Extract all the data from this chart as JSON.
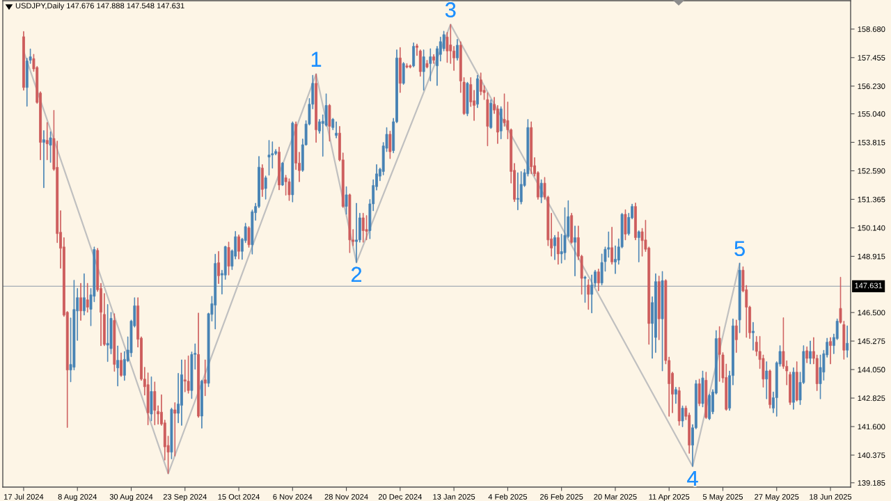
{
  "chart_data": {
    "type": "candlestick",
    "title": "USDJPY,Daily 147.676 147.888 147.548 147.631",
    "categories": [
      "17 Jul 2024",
      null,
      null,
      null,
      null,
      null,
      null,
      null,
      null,
      null,
      null,
      null,
      null,
      null,
      null,
      null,
      "8 Aug 2024",
      null,
      null,
      null,
      null,
      null,
      null,
      null,
      null,
      null,
      null,
      null,
      null,
      null,
      null,
      null,
      "30 Aug 2024",
      null,
      null,
      null,
      null,
      null,
      null,
      null,
      null,
      null,
      null,
      null,
      null,
      null,
      null,
      null,
      "23 Sep 2024",
      null,
      null,
      null,
      null,
      null,
      null,
      null,
      null,
      null,
      null,
      null,
      null,
      null,
      null,
      null,
      "15 Oct 2024",
      null,
      null,
      null,
      null,
      null,
      null,
      null,
      null,
      null,
      null,
      null,
      null,
      null,
      null,
      null,
      "6 Nov 2024",
      null,
      null,
      null,
      null,
      null,
      null,
      null,
      null,
      null,
      null,
      null,
      null,
      null,
      null,
      null,
      "28 Nov 2024",
      null,
      null,
      null,
      null,
      null,
      null,
      null,
      null,
      null,
      null,
      null,
      null,
      null,
      null,
      null,
      "20 Dec 2024",
      null,
      null,
      null,
      null,
      null,
      null,
      null,
      null,
      null,
      null,
      null,
      null,
      null,
      null,
      null,
      "13 Jan 2025",
      null,
      null,
      null,
      null,
      null,
      null,
      null,
      null,
      null,
      null,
      null,
      null,
      null,
      null,
      null,
      "4 Feb 2025",
      null,
      null,
      null,
      null,
      null,
      null,
      null,
      null,
      null,
      null,
      null,
      null,
      null,
      null,
      null,
      "26 Feb 2025",
      null,
      null,
      null,
      null,
      null,
      null,
      null,
      null,
      null,
      null,
      null,
      null,
      null,
      null,
      null,
      "20 Mar 2025",
      null,
      null,
      null,
      null,
      null,
      null,
      null,
      null,
      null,
      null,
      null,
      null,
      null,
      null,
      null,
      "11 Apr 2025",
      null,
      null,
      null,
      null,
      null,
      null,
      null,
      null,
      null,
      null,
      null,
      null,
      null,
      null,
      null,
      "5 May 2025",
      null,
      null,
      null,
      null,
      null,
      null,
      null,
      null,
      null,
      null,
      null,
      null,
      null,
      null,
      null,
      "27 May 2025",
      null,
      null,
      null,
      null,
      null,
      null,
      null,
      null,
      null,
      null,
      null,
      null,
      null,
      null,
      null,
      "18 Jun 2025",
      null,
      null,
      null,
      null,
      null
    ],
    "ohlc": [
      [
        158.35,
        158.58,
        156.05,
        156.17
      ],
      [
        156.17,
        157.43,
        155.36,
        157.31
      ],
      [
        157.34,
        157.83,
        157.2,
        157.49
      ],
      [
        157.41,
        157.6,
        156.86,
        156.97
      ],
      [
        157.03,
        157.08,
        155.48,
        155.53
      ],
      [
        155.93,
        155.99,
        153.06,
        153.81
      ],
      [
        153.81,
        154.32,
        151.86,
        153.93
      ],
      [
        153.9,
        154.67,
        153.06,
        153.75
      ],
      [
        153.69,
        154.27,
        152.95,
        154.01
      ],
      [
        153.98,
        155.19,
        152.6,
        152.66
      ],
      [
        152.74,
        153.87,
        149.5,
        149.89
      ],
      [
        149.95,
        150.88,
        148.4,
        149.26
      ],
      [
        149.32,
        149.72,
        146.33,
        146.39
      ],
      [
        146.51,
        146.55,
        141.56,
        144.03
      ],
      [
        144.03,
        146.27,
        143.52,
        144.27
      ],
      [
        144.15,
        147.89,
        144.03,
        146.63
      ],
      [
        146.57,
        147.54,
        145.3,
        147.14
      ],
      [
        147.14,
        147.76,
        146.16,
        146.57
      ],
      [
        146.57,
        148.17,
        146.39,
        147.14
      ],
      [
        147.05,
        147.76,
        146.51,
        146.73
      ],
      [
        146.64,
        147.54,
        145.93,
        147.26
      ],
      [
        147.2,
        149.32,
        146.96,
        149.21
      ],
      [
        149.17,
        149.26,
        147.4,
        147.48
      ],
      [
        147.54,
        147.76,
        145.07,
        146.51
      ],
      [
        146.42,
        147.32,
        145.07,
        145.13
      ],
      [
        145.1,
        146.85,
        144.39,
        145.18
      ],
      [
        144.95,
        146.51,
        144.72,
        146.25
      ],
      [
        146.16,
        146.45,
        143.97,
        144.27
      ],
      [
        144.12,
        145.07,
        143.34,
        144.45
      ],
      [
        144.45,
        144.77,
        143.75,
        143.8
      ],
      [
        143.8,
        144.83,
        143.58,
        144.49
      ],
      [
        144.43,
        145.46,
        144.38,
        144.89
      ],
      [
        144.77,
        146.18,
        144.6,
        146.13
      ],
      [
        145.93,
        147.14,
        145.87,
        146.79
      ],
      [
        146.79,
        147.14,
        145.01,
        145.35
      ],
      [
        145.4,
        145.46,
        143.58,
        143.64
      ],
      [
        143.64,
        144.15,
        142.95,
        143.31
      ],
      [
        143.4,
        143.91,
        141.67,
        142.19
      ],
      [
        142.14,
        143.74,
        141.84,
        143.11
      ],
      [
        143.11,
        143.52,
        141.67,
        142.3
      ],
      [
        142.25,
        142.5,
        141.7,
        142.14
      ],
      [
        142.22,
        142.97,
        141.65,
        141.71
      ],
      [
        141.76,
        141.88,
        140.16,
        140.73
      ],
      [
        140.79,
        141.19,
        139.58,
        140.5
      ],
      [
        140.5,
        142.4,
        140.21,
        142.34
      ],
      [
        142.32,
        142.63,
        140.33,
        142.17
      ],
      [
        142.17,
        143.89,
        141.76,
        142.57
      ],
      [
        142.51,
        144.47,
        141.65,
        143.83
      ],
      [
        143.61,
        144.47,
        143.09,
        143.55
      ],
      [
        143.55,
        144.64,
        143.03,
        143.15
      ],
      [
        143.15,
        144.81,
        142.8,
        144.7
      ],
      [
        144.7,
        145.16,
        144.06,
        144.75
      ],
      [
        144.7,
        146.48,
        141.99,
        142.05
      ],
      [
        142.05,
        143.6,
        141.53,
        143.55
      ],
      [
        143.61,
        144.47,
        142.92,
        143.46
      ],
      [
        143.46,
        146.48,
        143.31,
        146.45
      ],
      [
        146.42,
        147.2,
        146.13,
        146.88
      ],
      [
        146.82,
        149.01,
        145.79,
        148.61
      ],
      [
        148.64,
        149.13,
        147.74,
        148.08
      ],
      [
        148.11,
        148.32,
        147.29,
        148.18
      ],
      [
        148.11,
        149.36,
        147.92,
        149.33
      ],
      [
        149.3,
        149.53,
        148.11,
        148.49
      ],
      [
        148.49,
        149.2,
        148.34,
        149.15
      ],
      [
        148.92,
        149.99,
        148.8,
        149.76
      ],
      [
        149.76,
        149.84,
        148.8,
        149.13
      ],
      [
        149.13,
        149.7,
        148.78,
        149.65
      ],
      [
        149.59,
        150.34,
        149.5,
        150.19
      ],
      [
        150.14,
        150.2,
        149.3,
        149.41
      ],
      [
        149.41,
        150.91,
        149.01,
        150.83
      ],
      [
        150.79,
        151.2,
        150.46,
        151.06
      ],
      [
        151.06,
        153.21,
        151.0,
        152.75
      ],
      [
        152.71,
        152.86,
        151.48,
        151.79
      ],
      [
        151.83,
        152.37,
        151.37,
        152.29
      ],
      [
        153.18,
        153.9,
        152.4,
        153.27
      ],
      [
        153.27,
        153.84,
        152.7,
        153.33
      ],
      [
        153.33,
        153.51,
        153.27,
        153.42
      ],
      [
        153.4,
        153.61,
        151.77,
        151.98
      ],
      [
        151.98,
        152.95,
        151.95,
        152.92
      ],
      [
        152.29,
        152.4,
        151.54,
        152.12
      ],
      [
        152.12,
        152.25,
        151.31,
        151.56
      ],
      [
        151.56,
        154.7,
        151.25,
        154.64
      ],
      [
        154.59,
        154.7,
        152.64,
        152.92
      ],
      [
        152.92,
        153.39,
        152.12,
        152.6
      ],
      [
        152.61,
        153.96,
        152.56,
        153.71
      ],
      [
        153.71,
        154.75,
        153.68,
        154.6
      ],
      [
        154.6,
        155.7,
        154.55,
        155.45
      ],
      [
        155.45,
        156.7,
        155.25,
        156.35
      ],
      [
        156.35,
        156.75,
        153.81,
        154.35
      ],
      [
        154.3,
        154.8,
        154.2,
        154.7
      ],
      [
        154.62,
        155.0,
        153.21,
        154.72
      ],
      [
        154.55,
        155.9,
        154.5,
        155.4
      ],
      [
        155.4,
        155.45,
        153.86,
        154.5
      ],
      [
        154.45,
        154.85,
        154.35,
        154.8
      ],
      [
        154.11,
        154.7,
        154.0,
        154.21
      ],
      [
        154.21,
        154.5,
        153.01,
        153.06
      ],
      [
        153.06,
        153.36,
        151.01,
        151.06
      ],
      [
        151.06,
        151.91,
        150.72,
        151.56
      ],
      [
        151.56,
        151.6,
        149.07,
        149.62
      ],
      [
        149.62,
        150.07,
        149.37,
        149.55
      ],
      [
        149.55,
        151.2,
        148.65,
        149.62
      ],
      [
        149.62,
        150.77,
        149.52,
        150.57
      ],
      [
        150.57,
        150.77,
        149.52,
        150.02
      ],
      [
        150.07,
        150.67,
        149.62,
        149.99
      ],
      [
        150.02,
        151.36,
        149.67,
        151.17
      ],
      [
        151.17,
        152.21,
        150.87,
        151.96
      ],
      [
        151.91,
        152.86,
        151.76,
        152.46
      ],
      [
        152.36,
        152.71,
        152.16,
        152.66
      ],
      [
        152.56,
        153.81,
        152.41,
        153.66
      ],
      [
        153.56,
        154.45,
        153.41,
        154.16
      ],
      [
        154.16,
        154.3,
        153.11,
        153.41
      ],
      [
        153.46,
        154.85,
        153.36,
        154.7
      ],
      [
        154.7,
        157.79,
        154.65,
        157.44
      ],
      [
        157.44,
        157.89,
        155.95,
        156.35
      ],
      [
        156.35,
        157.25,
        156.3,
        157.2
      ],
      [
        157.1,
        157.2,
        157.0,
        157.05
      ],
      [
        157.1,
        157.15,
        157.0,
        157.05
      ],
      [
        157.1,
        158.09,
        157.05,
        157.94
      ],
      [
        157.96,
        158.04,
        157.54,
        157.89
      ],
      [
        157.74,
        157.79,
        156.65,
        156.85
      ],
      [
        156.85,
        157.79,
        156.05,
        157.49
      ],
      [
        157.2,
        157.34,
        157.0,
        157.05
      ],
      [
        157.2,
        157.84,
        156.45,
        157.49
      ],
      [
        157.49,
        157.59,
        157.2,
        157.34
      ],
      [
        157.1,
        157.94,
        156.25,
        157.84
      ],
      [
        157.59,
        158.34,
        157.3,
        158.14
      ],
      [
        157.84,
        158.59,
        157.74,
        158.44
      ],
      [
        158.34,
        158.54,
        157.24,
        157.74
      ],
      [
        158.0,
        158.88,
        157.2,
        157.74
      ],
      [
        157.74,
        157.94,
        156.9,
        157.44
      ],
      [
        157.44,
        158.24,
        157.34,
        157.99
      ],
      [
        157.99,
        158.14,
        155.95,
        156.45
      ],
      [
        156.4,
        156.6,
        155.0,
        155.05
      ],
      [
        155.05,
        156.4,
        154.95,
        156.35
      ],
      [
        156.3,
        156.6,
        155.35,
        155.55
      ],
      [
        155.6,
        156.05,
        154.75,
        155.4
      ],
      [
        155.45,
        156.7,
        155.3,
        156.55
      ],
      [
        156.5,
        156.8,
        155.85,
        156.0
      ],
      [
        156.05,
        156.25,
        155.65,
        155.95
      ],
      [
        155.65,
        155.95,
        153.66,
        154.5
      ],
      [
        154.45,
        155.65,
        154.4,
        155.5
      ],
      [
        155.45,
        155.75,
        155.05,
        155.2
      ],
      [
        155.25,
        155.4,
        153.76,
        154.25
      ],
      [
        154.3,
        155.35,
        153.96,
        155.25
      ],
      [
        154.8,
        155.9,
        154.5,
        154.65
      ],
      [
        154.75,
        155.55,
        153.96,
        154.35
      ],
      [
        154.35,
        154.4,
        152.06,
        152.56
      ],
      [
        152.61,
        152.91,
        151.26,
        151.36
      ],
      [
        151.36,
        152.51,
        150.91,
        151.41
      ],
      [
        151.26,
        152.56,
        151.16,
        152.01
      ],
      [
        151.96,
        152.66,
        151.91,
        152.51
      ],
      [
        152.46,
        154.8,
        152.36,
        154.45
      ],
      [
        154.45,
        154.7,
        152.46,
        152.76
      ],
      [
        152.81,
        153.16,
        152.36,
        152.46
      ],
      [
        152.51,
        152.56,
        151.36,
        151.46
      ],
      [
        151.46,
        152.21,
        151.21,
        152.06
      ],
      [
        152.06,
        152.31,
        151.36,
        151.46
      ],
      [
        151.46,
        151.51,
        149.37,
        149.62
      ],
      [
        149.67,
        150.77,
        148.92,
        149.27
      ],
      [
        149.37,
        149.82,
        148.77,
        149.72
      ],
      [
        149.72,
        149.97,
        148.57,
        149.02
      ],
      [
        149.02,
        149.87,
        148.62,
        149.12
      ],
      [
        149.07,
        151.01,
        148.77,
        149.82
      ],
      [
        149.77,
        151.31,
        149.72,
        150.62
      ],
      [
        150.67,
        150.77,
        149.47,
        149.52
      ],
      [
        149.52,
        150.22,
        148.07,
        149.72
      ],
      [
        149.72,
        150.22,
        148.77,
        148.92
      ],
      [
        148.92,
        148.97,
        147.28,
        147.97
      ],
      [
        147.97,
        148.07,
        146.93,
        148.02
      ],
      [
        147.68,
        147.92,
        146.63,
        147.28
      ],
      [
        147.28,
        148.12,
        146.48,
        147.68
      ],
      [
        147.77,
        148.32,
        147.6,
        148.25
      ],
      [
        148.25,
        148.37,
        147.43,
        147.77
      ],
      [
        147.77,
        149.02,
        147.68,
        148.65
      ],
      [
        148.69,
        149.32,
        148.27,
        149.22
      ],
      [
        149.22,
        149.97,
        148.87,
        149.29
      ],
      [
        149.29,
        150.17,
        148.57,
        148.67
      ],
      [
        148.67,
        149.37,
        148.17,
        148.79
      ],
      [
        148.75,
        149.67,
        148.57,
        149.32
      ],
      [
        149.32,
        150.77,
        149.27,
        150.72
      ],
      [
        150.72,
        150.92,
        149.62,
        149.87
      ],
      [
        149.89,
        150.77,
        149.82,
        150.59
      ],
      [
        150.57,
        151.16,
        150.52,
        151.06
      ],
      [
        151.06,
        151.21,
        149.62,
        149.72
      ],
      [
        149.72,
        150.02,
        148.67,
        149.97
      ],
      [
        149.97,
        150.12,
        148.92,
        149.59
      ],
      [
        149.62,
        150.47,
        149.12,
        149.22
      ],
      [
        149.27,
        149.32,
        145.13,
        146.03
      ],
      [
        146.03,
        147.18,
        144.53,
        146.93
      ],
      [
        145.43,
        148.17,
        144.78,
        147.83
      ],
      [
        147.83,
        148.07,
        145.33,
        146.23
      ],
      [
        146.23,
        148.27,
        143.99,
        147.87
      ],
      [
        147.87,
        147.92,
        144.29,
        144.44
      ],
      [
        144.44,
        144.59,
        142.04,
        143.44
      ],
      [
        143.89,
        143.94,
        142.19,
        142.99
      ],
      [
        142.99,
        143.29,
        142.59,
        143.19
      ],
      [
        143.14,
        143.29,
        141.65,
        141.84
      ],
      [
        141.84,
        142.49,
        141.59,
        142.39
      ],
      [
        142.39,
        142.49,
        141.89,
        142.04
      ],
      [
        142.09,
        142.19,
        140.45,
        140.8
      ],
      [
        140.8,
        141.69,
        139.89,
        141.55
      ],
      [
        141.55,
        143.59,
        141.5,
        143.44
      ],
      [
        143.44,
        143.64,
        142.49,
        142.59
      ],
      [
        142.59,
        143.99,
        142.44,
        143.69
      ],
      [
        143.59,
        143.94,
        141.94,
        141.99
      ],
      [
        141.94,
        142.99,
        141.89,
        142.94
      ],
      [
        142.24,
        143.19,
        142.14,
        143.09
      ],
      [
        143.04,
        145.73,
        142.99,
        145.38
      ],
      [
        145.4,
        145.9,
        143.54,
        144.7
      ],
      [
        144.68,
        144.78,
        143.49,
        143.69
      ],
      [
        143.71,
        144.29,
        142.29,
        142.34
      ],
      [
        142.39,
        143.99,
        142.29,
        143.79
      ],
      [
        143.79,
        146.23,
        143.39,
        145.93
      ],
      [
        145.93,
        146.18,
        144.78,
        145.33
      ],
      [
        146.18,
        148.62,
        145.63,
        148.32
      ],
      [
        148.32,
        148.47,
        147.38,
        147.43
      ],
      [
        147.48,
        147.67,
        145.43,
        146.73
      ],
      [
        146.73,
        146.78,
        145.38,
        145.63
      ],
      [
        145.63,
        146.08,
        144.88,
        145.7
      ],
      [
        145.23,
        145.48,
        144.64,
        144.83
      ],
      [
        144.83,
        145.48,
        144.09,
        144.48
      ],
      [
        144.53,
        144.68,
        143.29,
        143.64
      ],
      [
        143.64,
        144.39,
        142.79,
        143.99
      ],
      [
        143.99,
        144.04,
        142.39,
        142.54
      ],
      [
        142.39,
        143.09,
        142.19,
        142.84
      ],
      [
        142.84,
        144.39,
        142.04,
        144.34
      ],
      [
        144.29,
        145.08,
        144.19,
        144.83
      ],
      [
        144.83,
        146.28,
        144.09,
        144.19
      ],
      [
        144.19,
        144.43,
        143.39,
        143.99
      ],
      [
        143.84,
        143.94,
        142.54,
        142.64
      ],
      [
        142.64,
        144.13,
        142.34,
        143.94
      ],
      [
        143.94,
        144.39,
        142.69,
        142.74
      ],
      [
        142.74,
        143.94,
        142.54,
        143.5
      ],
      [
        143.49,
        145.08,
        143.44,
        144.83
      ],
      [
        144.86,
        145.03,
        144.34,
        144.53
      ],
      [
        144.53,
        145.28,
        144.29,
        144.83
      ],
      [
        144.83,
        145.43,
        144.29,
        144.53
      ],
      [
        144.53,
        144.68,
        143.14,
        143.44
      ],
      [
        143.44,
        144.68,
        142.79,
        144.14
      ],
      [
        143.94,
        144.88,
        143.59,
        144.73
      ],
      [
        144.68,
        145.4,
        144.58,
        145.23
      ],
      [
        145.26,
        145.43,
        144.29,
        145.08
      ],
      [
        145.08,
        145.58,
        144.73,
        145.43
      ],
      [
        145.38,
        146.23,
        145.33,
        146.13
      ],
      [
        146.68,
        148.02,
        146.03,
        146.08
      ],
      [
        145.98,
        146.13,
        144.49,
        144.88
      ],
      [
        144.88,
        145.93,
        144.58,
        145.18
      ]
    ],
    "colors": [
      "#cd5c5c",
      "#4682b4",
      "#4682b4",
      "#cd5c5c",
      "#cd5c5c",
      "#cd5c5c",
      "#4682b4",
      "#cd5c5c",
      "#4682b4",
      "#cd5c5c",
      "#cd5c5c",
      "#cd5c5c",
      "#cd5c5c",
      "#cd5c5c",
      "#4682b4",
      "#4682b4",
      "#4682b4",
      "#cd5c5c",
      "#4682b4",
      "#cd5c5c",
      "#4682b4",
      "#4682b4",
      "#cd5c5c",
      "#cd5c5c",
      "#cd5c5c",
      "#4682b4",
      "#4682b4",
      "#cd5c5c",
      "#4682b4",
      "#cd5c5c",
      "#4682b4",
      "#4682b4",
      "#4682b4",
      "#4682b4",
      "#cd5c5c",
      "#cd5c5c",
      "#cd5c5c",
      "#cd5c5c",
      "#4682b4",
      "#cd5c5c",
      "#cd5c5c",
      "#cd5c5c",
      "#cd5c5c",
      "#cd5c5c",
      "#4682b4",
      "#cd5c5c",
      "#4682b4",
      "#4682b4",
      "#cd5c5c",
      "#cd5c5c",
      "#4682b4",
      "#4682b4",
      "#cd5c5c",
      "#4682b4",
      "#cd5c5c",
      "#4682b4",
      "#4682b4",
      "#4682b4",
      "#cd5c5c",
      "#4682b4",
      "#4682b4",
      "#cd5c5c",
      "#4682b4",
      "#4682b4",
      "#cd5c5c",
      "#4682b4",
      "#4682b4",
      "#cd5c5c",
      "#4682b4",
      "#4682b4",
      "#4682b4",
      "#cd5c5c",
      "#4682b4",
      "#4682b4",
      "#4682b4",
      "#4682b4",
      "#cd5c5c",
      "#4682b4",
      "#cd5c5c",
      "#cd5c5c",
      "#4682b4",
      "#cd5c5c",
      "#cd5c5c",
      "#4682b4",
      "#4682b4",
      "#4682b4",
      "#4682b4",
      "#cd5c5c",
      "#4682b4",
      "#4682b4",
      "#4682b4",
      "#cd5c5c",
      "#4682b4",
      "#4682b4",
      "#cd5c5c",
      "#cd5c5c",
      "#4682b4",
      "#cd5c5c",
      "#cd5c5c",
      "#4682b4",
      "#4682b4",
      "#cd5c5c",
      "#cd5c5c",
      "#4682b4",
      "#4682b4",
      "#4682b4",
      "#4682b4",
      "#4682b4",
      "#4682b4",
      "#cd5c5c",
      "#4682b4",
      "#4682b4",
      "#cd5c5c",
      "#4682b4",
      "#cd5c5c",
      "#cd5c5c",
      "#4682b4",
      "#cd5c5c",
      "#cd5c5c",
      "#4682b4",
      "#cd5c5c",
      "#4682b4",
      "#cd5c5c",
      "#4682b4",
      "#4682b4",
      "#4682b4",
      "#cd5c5c",
      "#cd5c5c",
      "#cd5c5c",
      "#4682b4",
      "#cd5c5c",
      "#cd5c5c",
      "#4682b4",
      "#cd5c5c",
      "#cd5c5c",
      "#4682b4",
      "#cd5c5c",
      "#cd5c5c",
      "#cd5c5c",
      "#4682b4",
      "#cd5c5c",
      "#cd5c5c",
      "#4682b4",
      "#cd5c5c",
      "#cd5c5c",
      "#cd5c5c",
      "#cd5c5c",
      "#4682b4",
      "#4682b4",
      "#4682b4",
      "#4682b4",
      "#cd5c5c",
      "#cd5c5c",
      "#cd5c5c",
      "#4682b4",
      "#cd5c5c",
      "#cd5c5c",
      "#cd5c5c",
      "#4682b4",
      "#cd5c5c",
      "#4682b4",
      "#4682b4",
      "#4682b4",
      "#cd5c5c",
      "#4682b4",
      "#cd5c5c",
      "#cd5c5c",
      "#4682b4",
      "#cd5c5c",
      "#4682b4",
      "#4682b4",
      "#cd5c5c",
      "#4682b4",
      "#4682b4",
      "#4682b4",
      "#cd5c5c",
      "#4682b4",
      "#4682b4",
      "#4682b4",
      "#cd5c5c",
      "#4682b4",
      "#4682b4",
      "#cd5c5c",
      "#4682b4",
      "#cd5c5c",
      "#cd5c5c",
      "#cd5c5c",
      "#4682b4",
      "#4682b4",
      "#cd5c5c",
      "#4682b4",
      "#cd5c5c",
      "#cd5c5c",
      "#cd5c5c",
      "#4682b4",
      "#cd5c5c",
      "#4682b4",
      "#cd5c5c",
      "#cd5c5c",
      "#4682b4",
      "#4682b4",
      "#cd5c5c",
      "#4682b4",
      "#cd5c5c",
      "#4682b4",
      "#4682b4",
      "#4682b4",
      "#cd5c5c",
      "#cd5c5c",
      "#cd5c5c",
      "#4682b4",
      "#4682b4",
      "#cd5c5c",
      "#4682b4",
      "#cd5c5c",
      "#cd5c5c",
      "#cd5c5c",
      "#4682b4",
      "#cd5c5c",
      "#cd5c5c",
      "#cd5c5c",
      "#4682b4",
      "#cd5c5c",
      "#4682b4",
      "#4682b4",
      "#4682b4",
      "#cd5c5c",
      "#cd5c5c",
      "#cd5c5c",
      "#4682b4",
      "#cd5c5c",
      "#4682b4",
      "#4682b4",
      "#cd5c5c",
      "#4682b4",
      "#cd5c5c",
      "#cd5c5c",
      "#4682b4",
      "#4682b4",
      "#4682b4",
      "#cd5c5c",
      "#4682b4",
      "#4682b4",
      "#cd5c5c",
      "#cd5c5c",
      "#4682b4"
    ],
    "series": [
      {
        "type": "line",
        "color": "#c0c0c0",
        "values": [
          157.73,
          null,
          null,
          null,
          null,
          null,
          null,
          null,
          null,
          null,
          null,
          null,
          null,
          null,
          null,
          null,
          null,
          null,
          null,
          null,
          null,
          null,
          null,
          null,
          null,
          null,
          null,
          null,
          null,
          null,
          null,
          null,
          null,
          null,
          null,
          null,
          null,
          null,
          null,
          null,
          null,
          null,
          null,
          139.58,
          null,
          null,
          null,
          null,
          null,
          null,
          null,
          null,
          null,
          null,
          null,
          null,
          null,
          null,
          null,
          null,
          null,
          null,
          null,
          null,
          null,
          null,
          null,
          null,
          null,
          null,
          null,
          null,
          null,
          null,
          null,
          null,
          null,
          null,
          null,
          null,
          null,
          null,
          null,
          null,
          null,
          null,
          null,
          156.75,
          null,
          null,
          null,
          null,
          null,
          null,
          null,
          null,
          null,
          null,
          null,
          148.65,
          null,
          null,
          null,
          null,
          null,
          null,
          null,
          null,
          null,
          null,
          null,
          null,
          null,
          null,
          null,
          null,
          null,
          null,
          null,
          null,
          null,
          null,
          null,
          null,
          null,
          null,
          null,
          158.88,
          null,
          null,
          null,
          null,
          null,
          null,
          null,
          null,
          null,
          null,
          null,
          null,
          null,
          null,
          null,
          null,
          null,
          null,
          null,
          null,
          null,
          null,
          null,
          null,
          null,
          null,
          null,
          null,
          null,
          null,
          null,
          null,
          null,
          null,
          null,
          null,
          null,
          null,
          null,
          null,
          null,
          null,
          null,
          null,
          null,
          null,
          null,
          null,
          null,
          null,
          null,
          null,
          null,
          null,
          null,
          null,
          null,
          null,
          null,
          null,
          null,
          null,
          null,
          null,
          null,
          null,
          null,
          null,
          null,
          null,
          null,
          139.89,
          null,
          null,
          null,
          null,
          null,
          null,
          null,
          null,
          null,
          null,
          null,
          null,
          null,
          148.62,
          null,
          null,
          null,
          null,
          null,
          null,
          null,
          null,
          null,
          null,
          null,
          null,
          null,
          null,
          null,
          null,
          null,
          null,
          null,
          null,
          null,
          null,
          null,
          null,
          null,
          null,
          null,
          null,
          null,
          null,
          null,
          null
        ]
      }
    ],
    "annotations": [
      {
        "text": "1",
        "y": 156.75
      },
      {
        "text": "2",
        "y": 148.65
      },
      {
        "text": "3",
        "y": 158.88
      },
      {
        "text": "4",
        "y": 139.89
      },
      {
        "text": "5",
        "y": 148.62
      }
    ],
    "ref_lines": [
      {
        "axis": "y",
        "value": 147.631,
        "label": "147.631",
        "color": "#a3acb5"
      }
    ],
    "ylim": [
      139.0,
      159.9
    ],
    "yticks": [
      {
        "value": 158.68,
        "label": "158.680"
      },
      {
        "value": 157.455,
        "label": "157.455"
      },
      {
        "value": 156.23,
        "label": "156.230"
      },
      {
        "value": 155.04,
        "label": "155.040"
      },
      {
        "value": 153.815,
        "label": "153.815"
      },
      {
        "value": 152.59,
        "label": "152.590"
      },
      {
        "value": 151.365,
        "label": "151.365"
      },
      {
        "value": 150.14,
        "label": "150.140"
      },
      {
        "value": 148.915,
        "label": "148.915"
      },
      {
        "value": 146.5,
        "label": "146.500"
      },
      {
        "value": 145.275,
        "label": "145.275"
      },
      {
        "value": 144.05,
        "label": "144.050"
      },
      {
        "value": 142.825,
        "label": "142.825"
      },
      {
        "value": 141.6,
        "label": "141.600"
      },
      {
        "value": 140.375,
        "label": "140.375"
      },
      {
        "value": 139.185,
        "label": "139.185"
      }
    ]
  }
}
